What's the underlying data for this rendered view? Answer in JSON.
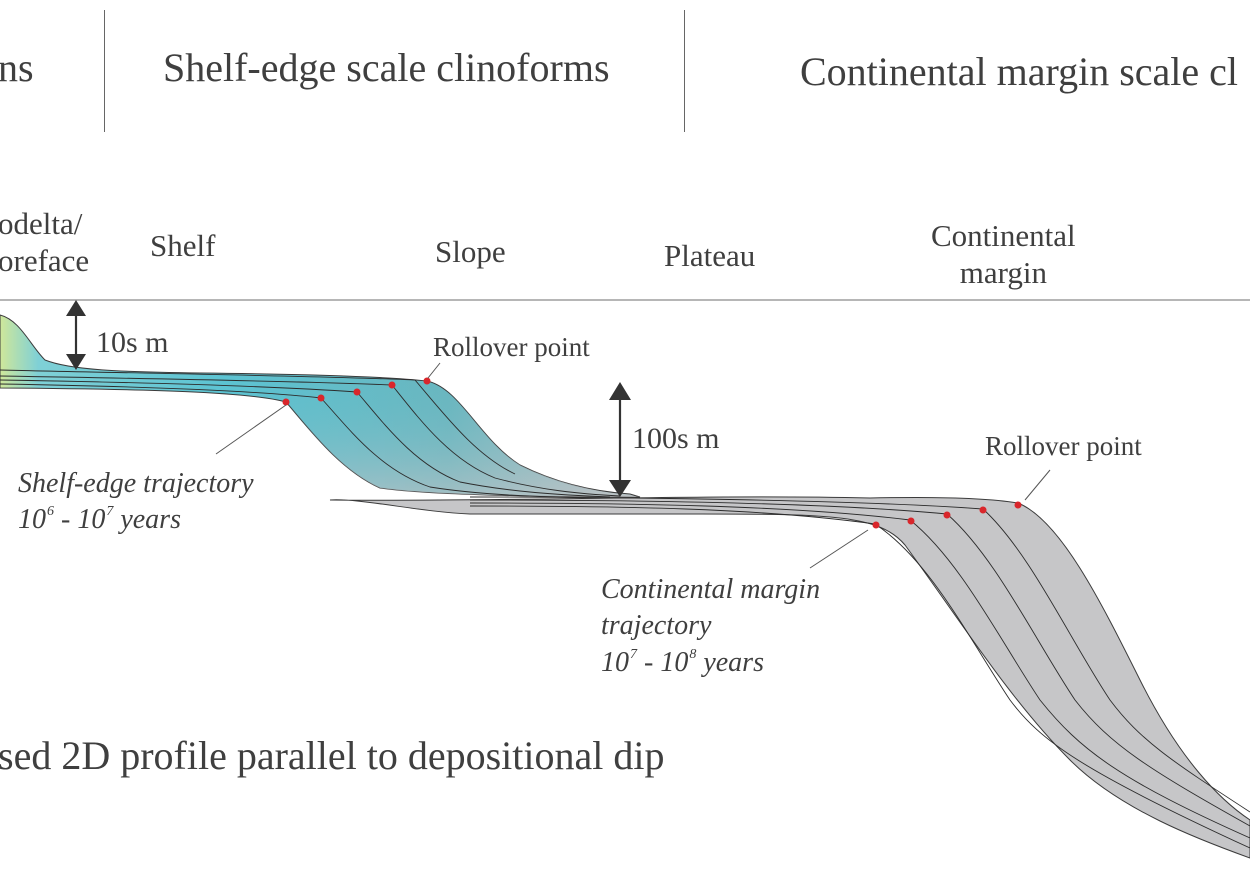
{
  "headers": {
    "left_fragment": "ns",
    "middle": "Shelf-edge scale clinoforms",
    "right": "Continental margin scale cl"
  },
  "zones": {
    "prodelta_line1": "odelta/",
    "prodelta_line2": "oreface",
    "shelf": "Shelf",
    "slope": "Slope",
    "plateau": "Plateau",
    "continental_margin_line1": "Continental",
    "continental_margin_line2": "margin"
  },
  "scale_labels": {
    "small": "10s m",
    "large": "100s m"
  },
  "rollover_labels": {
    "shelf_edge": "Rollover point",
    "continental_margin": "Rollover point"
  },
  "trajectories": {
    "shelf_edge": {
      "line1": "Shelf-edge trajectory",
      "base1": "10",
      "exp1": "6",
      "sep": " - ",
      "base2": "10",
      "exp2": "7",
      "suffix": " years"
    },
    "continental_margin": {
      "line1": "Continental margin",
      "line2": "trajectory",
      "base1": "10",
      "exp1": "7",
      "sep": " - ",
      "base2": "10",
      "exp2": "8",
      "suffix": " years"
    }
  },
  "footer": "sed 2D profile parallel to depositional dip",
  "colors": {
    "rollover_dot": "#d9262b",
    "fill_teal": "#5fbfcc",
    "fill_grey": "#c4c4c6",
    "fill_green": "#cfe8a0"
  }
}
